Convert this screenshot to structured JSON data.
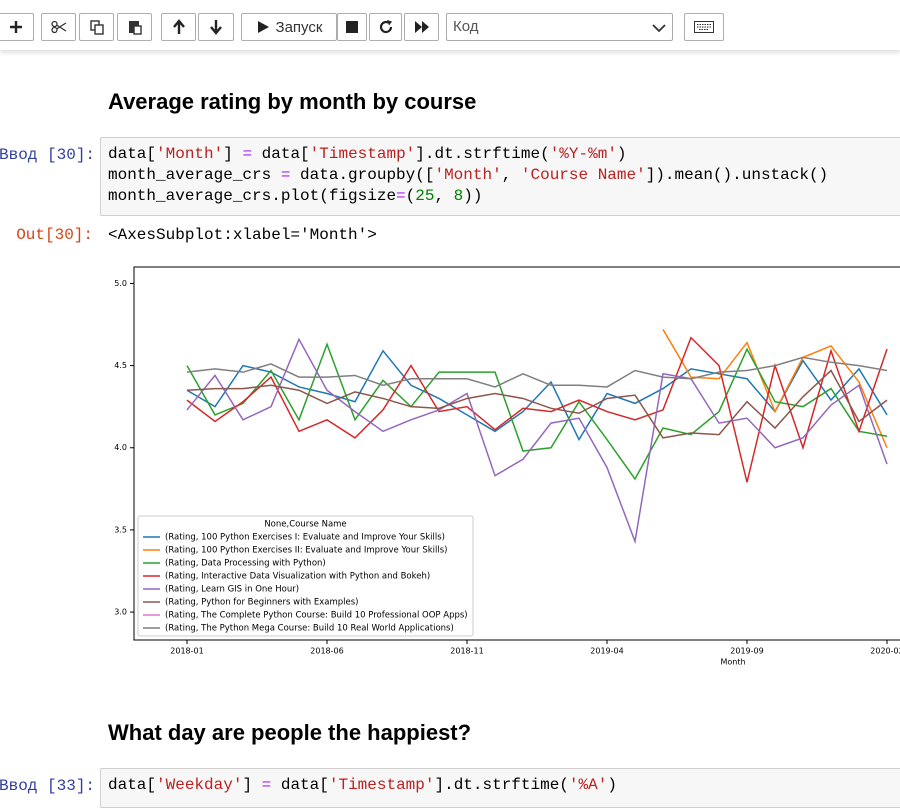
{
  "toolbar": {
    "run_label": "Запуск",
    "cell_type": "Код"
  },
  "heading_1": "Average rating by month by course",
  "cell_1": {
    "prompt": "Ввод [30]:",
    "code": [
      [
        {
          "text": "data[",
          "color": "#000000"
        },
        {
          "text": "'Month'",
          "color": "#ba2121"
        },
        {
          "text": "] ",
          "color": "#000000"
        },
        {
          "text": "=",
          "color": "#aa22ff"
        },
        {
          "text": " data[",
          "color": "#000000"
        },
        {
          "text": "'Timestamp'",
          "color": "#ba2121"
        },
        {
          "text": "].dt.strftime(",
          "color": "#000000"
        },
        {
          "text": "'%Y-%m'",
          "color": "#ba2121"
        },
        {
          "text": ")",
          "color": "#000000"
        }
      ],
      [
        {
          "text": "month_average_crs ",
          "color": "#000000"
        },
        {
          "text": "=",
          "color": "#aa22ff"
        },
        {
          "text": " data.groupby([",
          "color": "#000000"
        },
        {
          "text": "'Month'",
          "color": "#ba2121"
        },
        {
          "text": ", ",
          "color": "#000000"
        },
        {
          "text": "'Course Name'",
          "color": "#ba2121"
        },
        {
          "text": "]).mean().unstack()",
          "color": "#000000"
        }
      ],
      [
        {
          "text": "month_average_crs.plot(figsize",
          "color": "#000000"
        },
        {
          "text": "=",
          "color": "#aa22ff"
        },
        {
          "text": "(",
          "color": "#000000"
        },
        {
          "text": "25",
          "color": "#008000"
        },
        {
          "text": ", ",
          "color": "#000000"
        },
        {
          "text": "8",
          "color": "#008000"
        },
        {
          "text": "))",
          "color": "#000000"
        }
      ]
    ]
  },
  "output_1": {
    "prompt": "Out[30]:",
    "text": "<AxesSubplot:xlabel='Month'>"
  },
  "chart_data": {
    "type": "line",
    "xlabel": "Month",
    "legend_title": "None,Course Name",
    "legend": "lower left",
    "x": [
      "2018-01",
      null,
      null,
      null,
      null,
      "2018-06",
      null,
      null,
      null,
      null,
      "2018-11",
      null,
      null,
      null,
      null,
      "2019-04",
      null,
      null,
      null,
      null,
      "2019-09",
      null,
      null,
      null,
      null,
      "2020-02"
    ],
    "ylim": [
      2.83,
      5.1
    ],
    "yticks": [
      {
        "value": 3,
        "label": "3.0"
      },
      {
        "value": 3.5,
        "label": "3.5"
      },
      {
        "value": 4,
        "label": "4.0"
      },
      {
        "value": 4.5,
        "label": "4.5"
      },
      {
        "value": 5,
        "label": "5.0"
      }
    ],
    "series": [
      {
        "name": "(Rating, 100 Python Exercises I: Evaluate and Improve Your Skills)",
        "color": "#1f77b4",
        "values": [
          4.35,
          4.25,
          4.5,
          4.46,
          4.37,
          4.33,
          4.28,
          4.59,
          4.38,
          4.3,
          4.2,
          4.1,
          4.22,
          4.4,
          4.05,
          4.33,
          4.27,
          4.36,
          4.48,
          4.45,
          4.42,
          4.22,
          4.53,
          4.29,
          4.48,
          4.2
        ]
      },
      {
        "name": "(Rating, 100 Python Exercises II: Evaluate and Improve Your Skills)",
        "color": "#ff7f0e",
        "values": [
          null,
          null,
          null,
          null,
          null,
          null,
          null,
          null,
          null,
          null,
          null,
          null,
          null,
          null,
          null,
          null,
          null,
          4.72,
          4.43,
          4.42,
          4.64,
          4.22,
          4.55,
          4.62,
          4.4,
          4.0
        ]
      },
      {
        "name": "(Rating, Data Processing with Python)",
        "color": "#2ca02c",
        "values": [
          4.5,
          4.2,
          4.27,
          4.47,
          4.17,
          4.63,
          4.17,
          4.41,
          4.25,
          4.46,
          4.46,
          4.46,
          3.98,
          4.0,
          4.28,
          4.05,
          3.81,
          4.12,
          4.08,
          4.22,
          4.6,
          4.28,
          4.25,
          4.36,
          4.1,
          4.07
        ]
      },
      {
        "name": "(Rating, Interactive Data Visualization with Python and Bokeh)",
        "color": "#d62728",
        "values": [
          4.29,
          4.16,
          4.28,
          4.43,
          4.1,
          4.17,
          4.06,
          4.23,
          4.5,
          4.22,
          4.25,
          4.11,
          4.24,
          4.22,
          4.29,
          4.22,
          4.17,
          4.23,
          4.67,
          4.5,
          3.79,
          4.5,
          4.0,
          4.59,
          4.1,
          4.6
        ]
      },
      {
        "name": "(Rating, Learn GIS in One Hour)",
        "color": "#9467bd",
        "values": [
          4.23,
          4.44,
          4.17,
          4.25,
          4.66,
          4.35,
          4.22,
          4.1,
          4.17,
          4.23,
          4.33,
          3.83,
          3.93,
          4.15,
          4.18,
          3.88,
          3.43,
          4.45,
          4.42,
          4.15,
          4.18,
          4.0,
          4.06,
          4.26,
          4.38,
          3.9
        ]
      },
      {
        "name": "(Rating, Python for Beginners with Examples)",
        "color": "#8c564b",
        "values": [
          4.35,
          4.36,
          4.36,
          4.38,
          4.35,
          4.27,
          4.34,
          4.3,
          4.25,
          4.24,
          4.3,
          4.33,
          4.3,
          4.24,
          4.21,
          4.3,
          4.32,
          4.06,
          4.09,
          4.08,
          4.28,
          4.12,
          4.31,
          4.47,
          4.16,
          4.29
        ]
      },
      {
        "name": "(Rating, The Complete Python Course: Build 10 Professional OOP Apps)",
        "color": "#e377c2",
        "values": [
          null,
          null,
          null,
          null,
          null,
          null,
          null,
          null,
          null,
          null,
          null,
          null,
          null,
          null,
          null,
          null,
          null,
          null,
          null,
          null,
          null,
          null,
          null,
          null,
          null,
          null
        ]
      },
      {
        "name": "(Rating, The Python Mega Course: Build 10 Real World Applications)",
        "color": "#7f7f7f",
        "values": [
          4.46,
          4.48,
          4.46,
          4.51,
          4.43,
          4.43,
          4.44,
          4.38,
          4.42,
          4.42,
          4.42,
          4.37,
          4.45,
          4.38,
          4.38,
          4.37,
          4.47,
          4.43,
          4.42,
          4.46,
          4.47,
          4.5,
          4.55,
          4.52,
          4.5,
          4.47
        ]
      }
    ]
  },
  "heading_2": "What day are people the happiest?",
  "cell_2": {
    "prompt": "Ввод [33]:",
    "code": [
      [
        {
          "text": "data[",
          "color": "#000000"
        },
        {
          "text": "'Weekday'",
          "color": "#ba2121"
        },
        {
          "text": "] ",
          "color": "#000000"
        },
        {
          "text": "=",
          "color": "#aa22ff"
        },
        {
          "text": " data[",
          "color": "#000000"
        },
        {
          "text": "'Timestamp'",
          "color": "#ba2121"
        },
        {
          "text": "].dt.strftime(",
          "color": "#000000"
        },
        {
          "text": "'%A'",
          "color": "#ba2121"
        },
        {
          "text": ")",
          "color": "#000000"
        }
      ]
    ]
  }
}
